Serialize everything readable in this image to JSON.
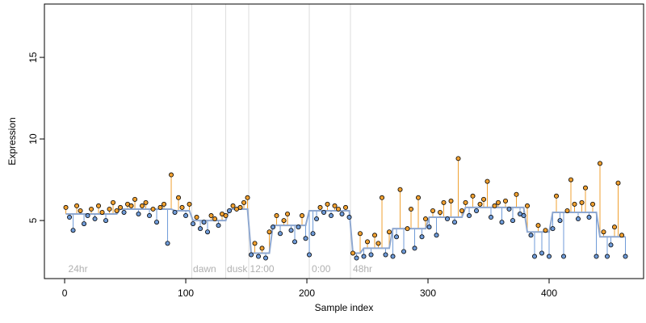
{
  "chart_data": {
    "type": "residual-line",
    "xlabel": "Sample index",
    "ylabel": "Expression",
    "xlim": [
      -16.7,
      478
    ],
    "ylim": [
      1.44,
      18.27
    ],
    "xticks": [
      0,
      100,
      200,
      300,
      400
    ],
    "yticks": [
      5,
      10,
      15
    ],
    "vlines": [
      105,
      133,
      152,
      202,
      236
    ],
    "annotations": [
      {
        "x": 3,
        "label": "24hr"
      },
      {
        "x": 106,
        "label": "dawn"
      },
      {
        "x": 134,
        "label": "dusk"
      },
      {
        "x": 153,
        "label": "12:00"
      },
      {
        "x": 204,
        "label": "0:00"
      },
      {
        "x": 238,
        "label": "48hr"
      }
    ],
    "x": [
      1,
      4,
      7,
      10,
      13,
      16,
      19,
      22,
      25,
      28,
      31,
      34,
      37,
      40,
      43,
      46,
      49,
      52,
      55,
      58,
      61,
      64,
      67,
      70,
      73,
      76,
      79,
      82,
      85,
      88,
      91,
      94,
      97,
      100,
      103,
      106,
      109,
      112,
      115,
      118,
      121,
      124,
      127,
      130,
      133,
      136,
      139,
      142,
      145,
      148,
      151,
      154,
      157,
      160,
      163,
      166,
      169,
      172,
      175,
      178,
      181,
      184,
      187,
      190,
      193,
      196,
      199,
      202,
      205,
      208,
      211,
      214,
      217,
      220,
      223,
      226,
      229,
      232,
      235,
      238,
      241,
      244,
      247,
      250,
      253,
      256,
      259,
      262,
      265,
      268,
      271,
      274,
      277,
      280,
      283,
      286,
      289,
      292,
      295,
      298,
      301,
      304,
      307,
      310,
      313,
      316,
      319,
      322,
      325,
      328,
      331,
      334,
      337,
      340,
      343,
      346,
      349,
      352,
      355,
      358,
      361,
      364,
      367,
      370,
      373,
      376,
      379,
      382,
      385,
      388,
      391,
      394,
      397,
      400,
      403,
      406,
      409,
      412,
      415,
      418,
      421,
      424,
      427,
      430,
      433,
      436,
      439,
      442,
      445,
      448,
      451,
      454,
      457,
      460,
      463
    ],
    "series": [
      {
        "name": "fit",
        "color": "#8fa8d0",
        "values": [
          5.4,
          5.4,
          5.4,
          5.4,
          5.4,
          5.4,
          5.4,
          5.4,
          5.4,
          5.4,
          5.4,
          5.4,
          5.4,
          5.4,
          5.4,
          5.7,
          5.7,
          5.7,
          5.7,
          5.7,
          5.7,
          5.7,
          5.7,
          5.7,
          5.7,
          5.7,
          5.7,
          5.7,
          5.7,
          5.7,
          5.6,
          5.6,
          5.6,
          5.6,
          5.6,
          5.0,
          5.0,
          5.0,
          5.0,
          5.0,
          5.0,
          5.0,
          5.0,
          5.0,
          5.0,
          5.7,
          5.7,
          5.7,
          5.7,
          5.7,
          5.7,
          3.0,
          3.0,
          3.0,
          3.0,
          3.0,
          3.0,
          4.7,
          4.7,
          4.7,
          4.7,
          4.7,
          4.7,
          4.7,
          4.7,
          4.7,
          4.7,
          5.6,
          5.6,
          5.6,
          5.6,
          5.6,
          5.6,
          5.6,
          5.6,
          5.6,
          5.6,
          5.6,
          5.6,
          3.0,
          3.0,
          3.0,
          3.3,
          3.3,
          3.3,
          3.3,
          3.3,
          3.3,
          3.3,
          3.3,
          4.5,
          4.5,
          4.5,
          4.5,
          4.5,
          4.5,
          4.5,
          4.5,
          4.5,
          4.5,
          5.2,
          5.2,
          5.2,
          5.2,
          5.2,
          5.2,
          5.2,
          5.2,
          5.2,
          5.2,
          5.8,
          5.8,
          5.8,
          5.8,
          5.8,
          5.8,
          5.8,
          5.8,
          5.8,
          5.8,
          5.8,
          5.8,
          5.8,
          5.8,
          5.8,
          5.8,
          5.8,
          4.3,
          4.3,
          4.3,
          4.3,
          4.3,
          4.3,
          4.3,
          5.5,
          5.5,
          5.5,
          5.5,
          5.5,
          5.5,
          5.5,
          5.5,
          5.5,
          5.5,
          5.5,
          5.5,
          5.5,
          4.0,
          4.0,
          4.0,
          4.0,
          4.0,
          4.0,
          4.0,
          4.0
        ]
      },
      {
        "name": "expression",
        "above_color": "#f0a030",
        "below_color": "#6f9bd8",
        "values": [
          5.8,
          5.2,
          4.4,
          5.9,
          5.6,
          4.8,
          5.3,
          5.7,
          5.1,
          5.9,
          5.5,
          5.0,
          5.7,
          6.1,
          5.6,
          5.8,
          5.5,
          6.0,
          5.9,
          6.3,
          5.4,
          5.9,
          6.1,
          5.3,
          5.7,
          4.9,
          5.8,
          6.0,
          3.6,
          7.8,
          5.5,
          6.4,
          5.8,
          5.3,
          6.0,
          4.8,
          5.2,
          4.5,
          4.9,
          4.3,
          5.3,
          5.1,
          4.7,
          5.4,
          5.3,
          5.6,
          5.9,
          5.7,
          5.8,
          6.1,
          6.4,
          2.9,
          3.6,
          2.8,
          3.3,
          2.7,
          4.3,
          4.6,
          5.3,
          4.2,
          5.0,
          5.4,
          4.4,
          3.7,
          4.6,
          5.3,
          3.9,
          2.9,
          4.2,
          5.1,
          5.8,
          5.5,
          6.0,
          5.3,
          5.9,
          5.7,
          5.4,
          5.8,
          5.2,
          3.0,
          2.7,
          4.2,
          2.8,
          3.7,
          2.9,
          4.1,
          3.6,
          6.4,
          2.9,
          4.3,
          2.8,
          4.0,
          6.9,
          3.1,
          4.5,
          5.7,
          3.3,
          6.4,
          4.0,
          5.1,
          4.6,
          5.6,
          4.1,
          5.5,
          6.1,
          5.1,
          6.2,
          4.9,
          8.8,
          5.6,
          6.1,
          5.3,
          6.5,
          5.6,
          6.0,
          6.3,
          7.4,
          5.2,
          5.9,
          6.1,
          4.9,
          6.2,
          5.7,
          5.0,
          6.6,
          5.4,
          5.3,
          5.9,
          4.1,
          2.8,
          4.7,
          3.0,
          4.4,
          2.8,
          4.5,
          6.5,
          5.0,
          2.8,
          5.6,
          7.5,
          6.0,
          5.1,
          6.1,
          7.0,
          5.2,
          6.0,
          2.8,
          8.5,
          4.3,
          2.8,
          3.5,
          4.6,
          7.3,
          4.1,
          2.8
        ]
      }
    ]
  }
}
